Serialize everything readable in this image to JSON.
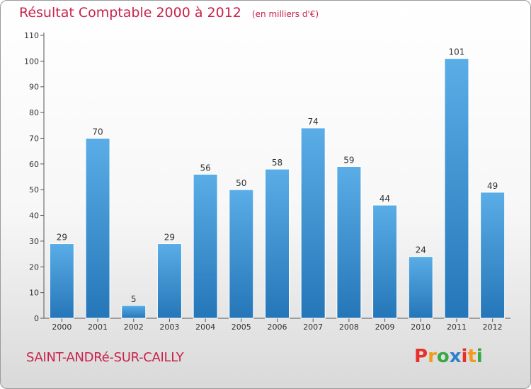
{
  "colors": {
    "title": "#c8224a",
    "bar_light": "#5aade6",
    "bar_dark": "#2576b8",
    "axis": "#555555",
    "brand": [
      "#e8302a",
      "#f39a1d",
      "#37a843",
      "#2f7fcf",
      "#e8302a",
      "#f39a1d",
      "#37a843"
    ]
  },
  "chart_data": {
    "type": "bar",
    "title": "Résultat Comptable 2000 à 2012",
    "subtitle": "(en milliers d'€)",
    "xlabel": "",
    "ylabel": "",
    "categories": [
      "2000",
      "2001",
      "2002",
      "2003",
      "2004",
      "2005",
      "2006",
      "2007",
      "2008",
      "2009",
      "2010",
      "2011",
      "2012"
    ],
    "values": [
      29,
      70,
      5,
      29,
      56,
      50,
      58,
      74,
      59,
      44,
      24,
      101,
      49
    ],
    "ylim": [
      0,
      110
    ],
    "yticks": [
      0,
      10,
      20,
      30,
      40,
      50,
      60,
      70,
      80,
      90,
      100,
      110
    ],
    "grid": false,
    "data_labels": true
  },
  "footer": {
    "commune": "SAINT-ANDRé-SUR-CAILLY",
    "brand_letters": [
      "P",
      "r",
      "o",
      "x",
      "i",
      "t",
      "i"
    ]
  }
}
